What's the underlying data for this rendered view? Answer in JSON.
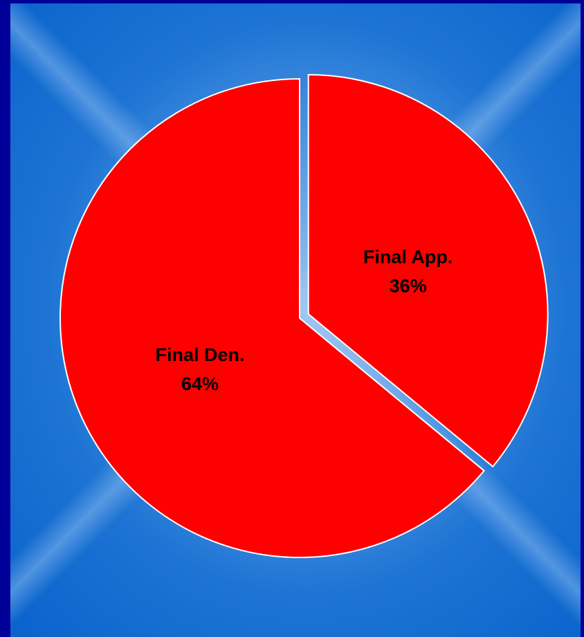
{
  "chart_data": {
    "type": "pie",
    "title": "",
    "slices": [
      {
        "label": "Final App.",
        "value": 36,
        "value_label": "36%",
        "color": "#ff0000",
        "exploded": true
      },
      {
        "label": "Final Den.",
        "value": 64,
        "value_label": "64%",
        "color": "#ff0000",
        "exploded": false
      }
    ],
    "start_angle": "12 o'clock",
    "direction": "clockwise",
    "slice_border_color": "#ffffff",
    "legend": "none"
  },
  "colors": {
    "outer_frame": "#000099",
    "background": "#1d74d4"
  }
}
